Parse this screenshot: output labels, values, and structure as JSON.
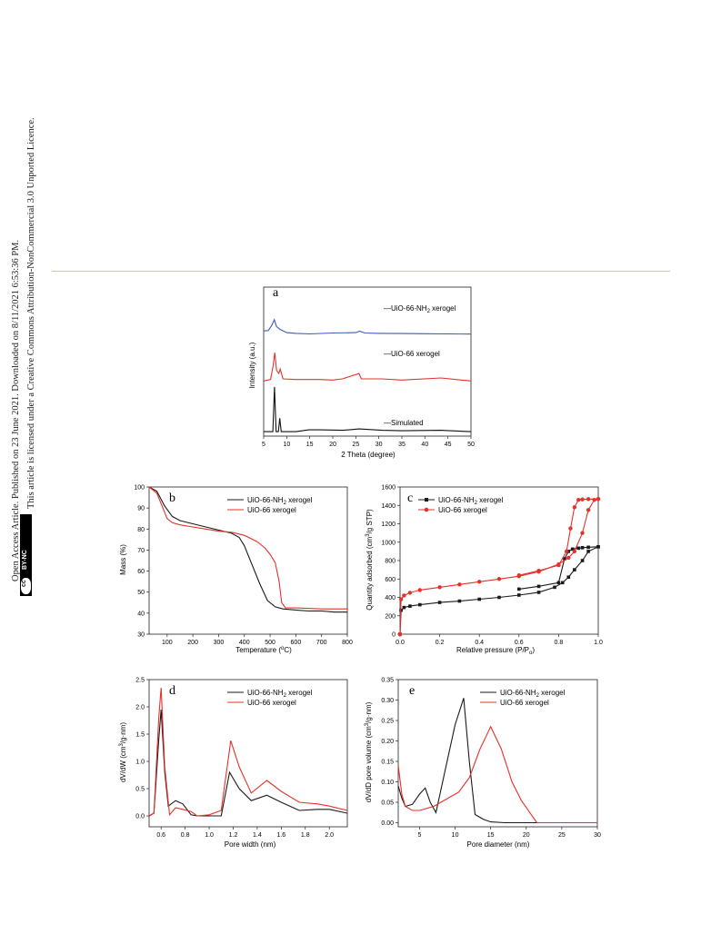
{
  "side_notice": {
    "line1": "Open Access Article. Published on 23 June 2021. Downloaded on 8/11/2021 6:53:36 PM.",
    "line2": "This article is licensed under a Creative Commons Attribution-NonCommercial 3.0 Unported Licence.",
    "badge_cc": "cc",
    "badge_text": "BY-NC"
  },
  "panels": {
    "a": {
      "letter": "a",
      "xlabel": "2 Theta (degree)",
      "ylabel": "Intensity (a.u.)",
      "labels": [
        "—UiO-66-NH",
        "2",
        " xerogel",
        "—UiO-66 xerogel",
        "—Simulated"
      ]
    },
    "b": {
      "letter": "b",
      "xlabel": "Temperature (",
      "xlabel_sup": "o",
      "xlabel_end": "C)",
      "ylabel": "Mass (%)"
    },
    "c": {
      "letter": "c",
      "xlabel": "Relative pressure (P/P",
      "xlabel_sub": "o",
      "xlabel_end": ")",
      "ylabel": "Quantity adsorbed (cm",
      "ylabel_sup": "3",
      "ylabel_end": "/g STP)"
    },
    "d": {
      "letter": "d",
      "xlabel": "Pore width (nm)",
      "ylabel": "dV/dW (cm",
      "ylabel_sup": "3",
      "ylabel_end": "/g·nm)"
    },
    "e": {
      "letter": "e",
      "xlabel": "Pore diameter (nm)",
      "ylabel": "dV/dD pore volume (cm",
      "ylabel_sup": "3",
      "ylabel_end": "/g·nm)"
    }
  },
  "legend": {
    "nh2_main": "UiO-66-NH",
    "nh2_sub": "2",
    "nh2_end": " xerogel",
    "uio": "UiO-66 xerogel"
  },
  "colors": {
    "nh2": "#1a1a1a",
    "uio": "#e8302a",
    "nh2_xrd": "#3a5fb0",
    "sim": "#111111"
  },
  "chart_data": [
    {
      "id": "a",
      "type": "line",
      "xlabel": "2 Theta (degree)",
      "ylabel": "Intensity (a.u.)",
      "xlim": [
        5,
        50
      ],
      "xticks": [
        5,
        10,
        15,
        20,
        25,
        30,
        35,
        40,
        45,
        50
      ],
      "series": [
        {
          "name": "UiO-66-NH2 xerogel",
          "x": [
            5,
            6,
            6.8,
            7.3,
            7.8,
            8.6,
            10,
            12,
            15,
            20,
            25,
            25.8,
            27,
            30,
            35,
            40,
            45,
            50
          ],
          "y": [
            0.22,
            0.24,
            0.55,
            0.85,
            0.45,
            0.3,
            0.12,
            0.08,
            0.05,
            0.1,
            0.12,
            0.2,
            0.1,
            0.08,
            0.07,
            0.06,
            0.05,
            0.04
          ]
        },
        {
          "name": "UiO-66 xerogel",
          "x": [
            5,
            6.5,
            7.1,
            7.4,
            7.8,
            8.3,
            8.6,
            9.2,
            12,
            14.8,
            17.3,
            20,
            22.1,
            25.7,
            26.2,
            30.7,
            35,
            43.5,
            50
          ],
          "y": [
            0.05,
            0.1,
            0.6,
            1.0,
            0.4,
            0.3,
            0.45,
            0.12,
            0.1,
            0.1,
            0.1,
            0.08,
            0.12,
            0.3,
            0.12,
            0.12,
            0.08,
            0.15,
            0.05
          ]
        },
        {
          "name": "Simulated",
          "x": [
            5,
            7.0,
            7.35,
            7.7,
            8.2,
            8.5,
            8.8,
            12,
            14.8,
            17.1,
            22.2,
            25.7,
            30.7,
            35,
            43.4,
            50
          ],
          "y": [
            0,
            0,
            1.0,
            0,
            0,
            0.3,
            0,
            0,
            0.04,
            0.04,
            0.03,
            0.06,
            0.03,
            0.02,
            0.03,
            0
          ]
        }
      ]
    },
    {
      "id": "b",
      "type": "line",
      "xlabel": "Temperature (oC)",
      "ylabel": "Mass (%)",
      "xlim": [
        30,
        800
      ],
      "ylim": [
        30,
        100
      ],
      "xticks": [
        100,
        200,
        300,
        400,
        500,
        600,
        700,
        800
      ],
      "yticks": [
        30,
        40,
        50,
        60,
        70,
        80,
        90,
        100
      ],
      "series": [
        {
          "name": "UiO-66-NH2 xerogel",
          "x": [
            30,
            60,
            90,
            120,
            150,
            200,
            250,
            300,
            350,
            380,
            400,
            430,
            460,
            490,
            520,
            550,
            600,
            650,
            700,
            750,
            800
          ],
          "y": [
            100,
            98,
            91,
            86,
            84,
            82.5,
            81,
            79.5,
            78,
            76,
            72,
            63,
            54,
            46,
            43,
            42,
            41.5,
            41,
            41,
            40.5,
            40.5
          ]
        },
        {
          "name": "UiO-66 xerogel",
          "x": [
            30,
            60,
            80,
            100,
            120,
            150,
            200,
            250,
            300,
            350,
            400,
            450,
            480,
            500,
            520,
            535,
            545,
            560,
            600,
            700,
            800
          ],
          "y": [
            100,
            97,
            91,
            85,
            83,
            82,
            81,
            80,
            79,
            78.5,
            77,
            74,
            71,
            68,
            64,
            55,
            45,
            42.5,
            42.5,
            42,
            42
          ]
        }
      ]
    },
    {
      "id": "c",
      "type": "line",
      "xlabel": "Relative pressure (P/Po)",
      "ylabel": "Quantity adsorbed (cm3/g STP)",
      "xlim": [
        0,
        1.0
      ],
      "ylim": [
        0,
        1600
      ],
      "xticks": [
        0.0,
        0.2,
        0.4,
        0.6,
        0.8,
        1.0
      ],
      "yticks": [
        0,
        200,
        400,
        600,
        800,
        1000,
        1200,
        1400,
        1600
      ],
      "series": [
        {
          "name": "UiO-66-NH2 xerogel (adsorption)",
          "x": [
            0,
            0.005,
            0.02,
            0.05,
            0.1,
            0.2,
            0.3,
            0.4,
            0.5,
            0.6,
            0.7,
            0.78,
            0.82,
            0.85,
            0.88,
            0.92,
            0.95,
            1.0
          ],
          "y": [
            0,
            260,
            290,
            305,
            320,
            345,
            360,
            380,
            400,
            425,
            455,
            510,
            560,
            620,
            700,
            800,
            900,
            950
          ]
        },
        {
          "name": "UiO-66-NH2 xerogel (desorption)",
          "x": [
            1.0,
            0.95,
            0.92,
            0.9,
            0.87,
            0.85,
            0.83,
            0.8,
            0.7,
            0.6
          ],
          "y": [
            950,
            945,
            940,
            935,
            925,
            900,
            820,
            560,
            520,
            490
          ]
        },
        {
          "name": "UiO-66 xerogel (adsorption)",
          "x": [
            0,
            0.005,
            0.02,
            0.05,
            0.1,
            0.2,
            0.3,
            0.4,
            0.5,
            0.6,
            0.7,
            0.8,
            0.85,
            0.88,
            0.92,
            0.95,
            0.98,
            1.0
          ],
          "y": [
            0,
            380,
            420,
            450,
            480,
            510,
            540,
            570,
            600,
            630,
            680,
            760,
            830,
            900,
            1100,
            1350,
            1460,
            1470
          ]
        },
        {
          "name": "UiO-66 xerogel (desorption)",
          "x": [
            1.0,
            0.95,
            0.92,
            0.9,
            0.88,
            0.86,
            0.84,
            0.8,
            0.7,
            0.6
          ],
          "y": [
            1470,
            1468,
            1465,
            1460,
            1380,
            1150,
            900,
            750,
            690,
            640
          ]
        }
      ]
    },
    {
      "id": "d",
      "type": "line",
      "xlabel": "Pore width (nm)",
      "ylabel": "dV/dW (cm3/g·nm)",
      "xlim": [
        0.5,
        2.15
      ],
      "ylim": [
        -0.2,
        2.5
      ],
      "xticks": [
        0.6,
        0.8,
        1.0,
        1.2,
        1.4,
        1.6,
        1.8,
        2.0
      ],
      "yticks": [
        0.0,
        0.5,
        1.0,
        1.5,
        2.0,
        2.5
      ],
      "series": [
        {
          "name": "UiO-66-NH2 xerogel",
          "x": [
            0.5,
            0.54,
            0.58,
            0.6,
            0.63,
            0.66,
            0.72,
            0.78,
            0.85,
            0.9,
            1.0,
            1.1,
            1.17,
            1.25,
            1.35,
            1.48,
            1.6,
            1.75,
            1.9,
            2.0,
            2.15
          ],
          "y": [
            0.0,
            0.05,
            1.4,
            1.95,
            0.8,
            0.18,
            0.28,
            0.22,
            0.02,
            0.0,
            0.0,
            0.0,
            0.8,
            0.5,
            0.28,
            0.38,
            0.25,
            0.1,
            0.12,
            0.12,
            0.05
          ]
        },
        {
          "name": "UiO-66 xerogel",
          "x": [
            0.5,
            0.54,
            0.58,
            0.6,
            0.63,
            0.67,
            0.72,
            0.78,
            0.85,
            0.9,
            1.0,
            1.1,
            1.18,
            1.25,
            1.35,
            1.48,
            1.6,
            1.75,
            1.9,
            2.0,
            2.15
          ],
          "y": [
            0.0,
            0.05,
            1.8,
            2.35,
            0.9,
            0.02,
            0.15,
            0.12,
            0.08,
            0.0,
            0.02,
            0.1,
            1.38,
            0.9,
            0.42,
            0.65,
            0.45,
            0.25,
            0.22,
            0.18,
            0.1
          ]
        }
      ]
    },
    {
      "id": "e",
      "type": "line",
      "xlabel": "Pore diameter (nm)",
      "ylabel": "dV/dD pore volume (cm3/g·nm)",
      "xlim": [
        2,
        30
      ],
      "ylim": [
        -0.01,
        0.35
      ],
      "xticks": [
        5,
        10,
        15,
        20,
        25,
        30
      ],
      "yticks": [
        0.0,
        0.05,
        0.1,
        0.15,
        0.2,
        0.25,
        0.3,
        0.35
      ],
      "series": [
        {
          "name": "UiO-66-NH2 xerogel",
          "x": [
            2,
            2.5,
            3,
            4,
            5,
            5.8,
            6.5,
            7.3,
            8.5,
            10,
            11.2,
            12,
            12.8,
            14,
            15,
            17,
            20,
            25,
            30
          ],
          "y": [
            0.09,
            0.06,
            0.04,
            0.045,
            0.07,
            0.085,
            0.05,
            0.025,
            0.12,
            0.24,
            0.305,
            0.15,
            0.02,
            0.008,
            0.002,
            0.0,
            0.0,
            0.0,
            0.0
          ]
        },
        {
          "name": "UiO-66 xerogel",
          "x": [
            2,
            2.5,
            3,
            4,
            5,
            7,
            9,
            10.5,
            12,
            13.5,
            15,
            16.5,
            18,
            19.3,
            20.5,
            21.5,
            25,
            30
          ],
          "y": [
            0.14,
            0.07,
            0.04,
            0.03,
            0.03,
            0.04,
            0.06,
            0.075,
            0.11,
            0.18,
            0.235,
            0.18,
            0.1,
            0.055,
            0.025,
            0.0,
            0.0,
            0.0
          ]
        }
      ]
    }
  ]
}
